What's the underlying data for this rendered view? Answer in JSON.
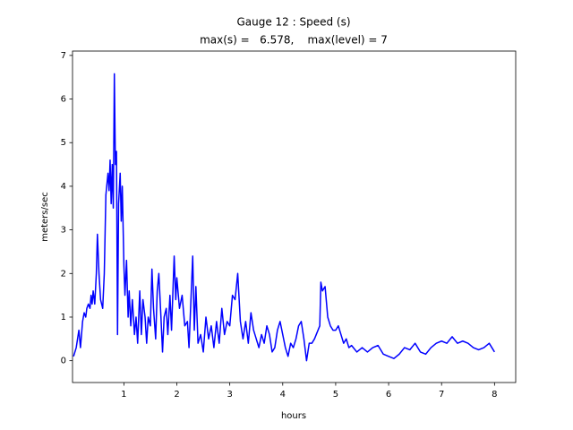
{
  "chart_data": {
    "type": "line",
    "title": "Gauge 12 : Speed (s)",
    "subtitle": "max(s) =   6.578,    max(level) = 7",
    "xlabel": "hours",
    "ylabel": "meters/sec",
    "color": "#0000ff",
    "xlim": [
      0.03,
      8.4
    ],
    "ylim": [
      -0.5,
      7.1
    ],
    "xticks": [
      1,
      2,
      3,
      4,
      5,
      6,
      7,
      8
    ],
    "yticks": [
      0,
      1,
      2,
      3,
      4,
      5,
      6,
      7
    ],
    "x": [
      0.05,
      0.1,
      0.15,
      0.18,
      0.22,
      0.25,
      0.28,
      0.3,
      0.33,
      0.36,
      0.38,
      0.4,
      0.42,
      0.45,
      0.48,
      0.5,
      0.53,
      0.56,
      0.6,
      0.63,
      0.66,
      0.7,
      0.72,
      0.74,
      0.76,
      0.78,
      0.8,
      0.82,
      0.84,
      0.86,
      0.88,
      0.9,
      0.93,
      0.95,
      0.97,
      1.0,
      1.02,
      1.05,
      1.08,
      1.1,
      1.13,
      1.16,
      1.2,
      1.23,
      1.26,
      1.3,
      1.33,
      1.36,
      1.4,
      1.43,
      1.46,
      1.5,
      1.53,
      1.56,
      1.6,
      1.63,
      1.66,
      1.7,
      1.73,
      1.76,
      1.8,
      1.83,
      1.87,
      1.9,
      1.95,
      1.98,
      2.0,
      2.05,
      2.1,
      2.15,
      2.2,
      2.23,
      2.27,
      2.3,
      2.33,
      2.36,
      2.4,
      2.45,
      2.5,
      2.55,
      2.6,
      2.65,
      2.7,
      2.75,
      2.8,
      2.85,
      2.9,
      2.95,
      3.0,
      3.05,
      3.1,
      3.15,
      3.2,
      3.25,
      3.3,
      3.35,
      3.4,
      3.45,
      3.5,
      3.55,
      3.6,
      3.65,
      3.7,
      3.75,
      3.8,
      3.85,
      3.9,
      3.95,
      4.0,
      4.05,
      4.1,
      4.15,
      4.2,
      4.25,
      4.3,
      4.35,
      4.4,
      4.45,
      4.5,
      4.55,
      4.6,
      4.7,
      4.72,
      4.75,
      4.8,
      4.85,
      4.9,
      4.95,
      5.0,
      5.05,
      5.1,
      5.15,
      5.2,
      5.25,
      5.3,
      5.4,
      5.5,
      5.6,
      5.7,
      5.8,
      5.9,
      6.0,
      6.1,
      6.2,
      6.3,
      6.4,
      6.5,
      6.6,
      6.7,
      6.8,
      6.9,
      7.0,
      7.1,
      7.2,
      7.3,
      7.4,
      7.5,
      7.6,
      7.7,
      7.8,
      7.9,
      7.95,
      8.0
    ],
    "values": [
      0.1,
      0.3,
      0.7,
      0.3,
      0.9,
      1.1,
      1.0,
      1.2,
      1.3,
      1.2,
      1.5,
      1.3,
      1.6,
      1.3,
      2.0,
      2.9,
      2.0,
      1.4,
      1.2,
      2.0,
      3.8,
      4.3,
      3.9,
      4.6,
      3.6,
      4.5,
      3.5,
      6.578,
      4.5,
      4.8,
      0.6,
      3.6,
      4.3,
      3.2,
      4.0,
      2.2,
      1.5,
      2.3,
      1.0,
      1.6,
      0.8,
      1.4,
      0.6,
      1.0,
      0.4,
      1.6,
      0.6,
      1.4,
      1.0,
      0.4,
      1.0,
      0.8,
      2.1,
      1.2,
      0.5,
      1.6,
      2.0,
      1.0,
      0.2,
      1.0,
      1.2,
      0.6,
      1.5,
      0.7,
      2.4,
      1.4,
      1.9,
      1.2,
      1.5,
      0.8,
      0.9,
      0.3,
      1.5,
      2.4,
      0.7,
      1.7,
      0.4,
      0.6,
      0.2,
      1.0,
      0.5,
      0.8,
      0.3,
      0.9,
      0.4,
      1.2,
      0.6,
      0.9,
      0.8,
      1.5,
      1.4,
      2.0,
      0.9,
      0.5,
      0.9,
      0.4,
      1.1,
      0.7,
      0.5,
      0.3,
      0.6,
      0.4,
      0.8,
      0.6,
      0.2,
      0.3,
      0.7,
      0.9,
      0.6,
      0.3,
      0.1,
      0.4,
      0.3,
      0.5,
      0.8,
      0.9,
      0.5,
      0.0,
      0.4,
      0.4,
      0.5,
      0.8,
      1.8,
      1.6,
      1.7,
      1.0,
      0.8,
      0.7,
      0.7,
      0.8,
      0.6,
      0.4,
      0.5,
      0.3,
      0.35,
      0.2,
      0.3,
      0.2,
      0.3,
      0.35,
      0.15,
      0.1,
      0.05,
      0.15,
      0.3,
      0.25,
      0.4,
      0.2,
      0.15,
      0.3,
      0.4,
      0.45,
      0.4,
      0.55,
      0.4,
      0.45,
      0.4,
      0.3,
      0.25,
      0.3,
      0.4,
      0.3,
      0.2
    ]
  }
}
